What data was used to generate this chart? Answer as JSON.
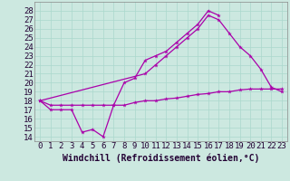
{
  "xlabel": "Windchill (Refroidissement éolien,°C)",
  "background_color": "#cce8e0",
  "line_color": "#aa00aa",
  "xlim": [
    -0.5,
    23.5
  ],
  "ylim": [
    13.5,
    29.0
  ],
  "xticks": [
    0,
    1,
    2,
    3,
    4,
    5,
    6,
    7,
    8,
    9,
    10,
    11,
    12,
    13,
    14,
    15,
    16,
    17,
    18,
    19,
    20,
    21,
    22,
    23
  ],
  "yticks": [
    14,
    15,
    16,
    17,
    18,
    19,
    20,
    21,
    22,
    23,
    24,
    25,
    26,
    27,
    28
  ],
  "s1x": [
    0,
    1,
    2,
    3,
    4,
    5,
    6,
    7,
    8,
    9,
    10,
    11,
    12,
    13,
    14,
    15,
    16,
    17
  ],
  "s1y": [
    18.0,
    17.0,
    17.0,
    17.0,
    14.5,
    14.8,
    14.0,
    17.5,
    20.0,
    20.5,
    22.5,
    23.0,
    23.5,
    24.5,
    25.5,
    26.5,
    28.0,
    27.5
  ],
  "s2x": [
    0,
    10,
    11,
    12,
    13,
    14,
    15,
    16,
    17,
    18,
    19,
    20,
    21,
    22,
    23
  ],
  "s2y": [
    18.0,
    21.0,
    22.0,
    23.0,
    24.0,
    25.0,
    26.0,
    27.5,
    27.0,
    25.5,
    24.0,
    23.0,
    21.5,
    19.5,
    19.0
  ],
  "s3x": [
    0,
    1,
    2,
    3,
    4,
    5,
    6,
    7,
    8,
    9,
    10,
    11,
    12,
    13,
    14,
    15,
    16,
    17,
    18,
    19,
    20,
    21,
    22,
    23
  ],
  "s3y": [
    18.0,
    17.5,
    17.5,
    17.5,
    17.5,
    17.5,
    17.5,
    17.5,
    17.5,
    17.8,
    18.0,
    18.0,
    18.2,
    18.3,
    18.5,
    18.7,
    18.8,
    19.0,
    19.0,
    19.2,
    19.3,
    19.3,
    19.3,
    19.3
  ],
  "grid_color": "#aad8cc",
  "font_size": 6.5,
  "lw": 0.9,
  "ms": 3.5
}
